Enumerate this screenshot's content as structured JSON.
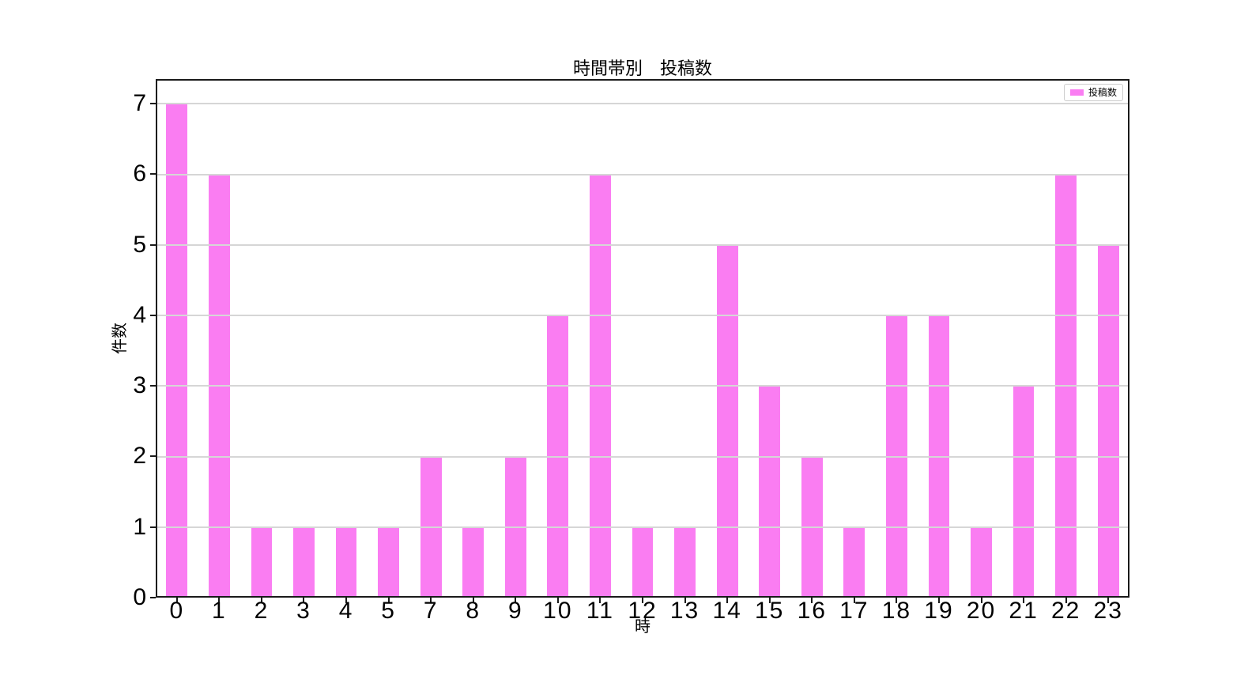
{
  "chart_data": {
    "type": "bar",
    "title": "時間帯別　投稿数",
    "xlabel": "時",
    "ylabel": "件数",
    "legend_label": "投稿数",
    "legend_position": "upper-right",
    "bar_color": "#fa7df2",
    "categories": [
      "0",
      "1",
      "2",
      "3",
      "4",
      "5",
      "7",
      "8",
      "9",
      "10",
      "11",
      "12",
      "13",
      "14",
      "15",
      "16",
      "17",
      "18",
      "19",
      "20",
      "21",
      "22",
      "23"
    ],
    "values": [
      7,
      6,
      1,
      1,
      1,
      1,
      2,
      1,
      2,
      4,
      6,
      1,
      1,
      5,
      3,
      2,
      1,
      4,
      4,
      1,
      3,
      6,
      5
    ],
    "yticks": [
      0,
      1,
      2,
      3,
      4,
      5,
      6,
      7
    ],
    "ylim": [
      0,
      7.35
    ],
    "grid": "horizontal, drawn above bars",
    "legend_entries": [
      "投稿数"
    ]
  }
}
